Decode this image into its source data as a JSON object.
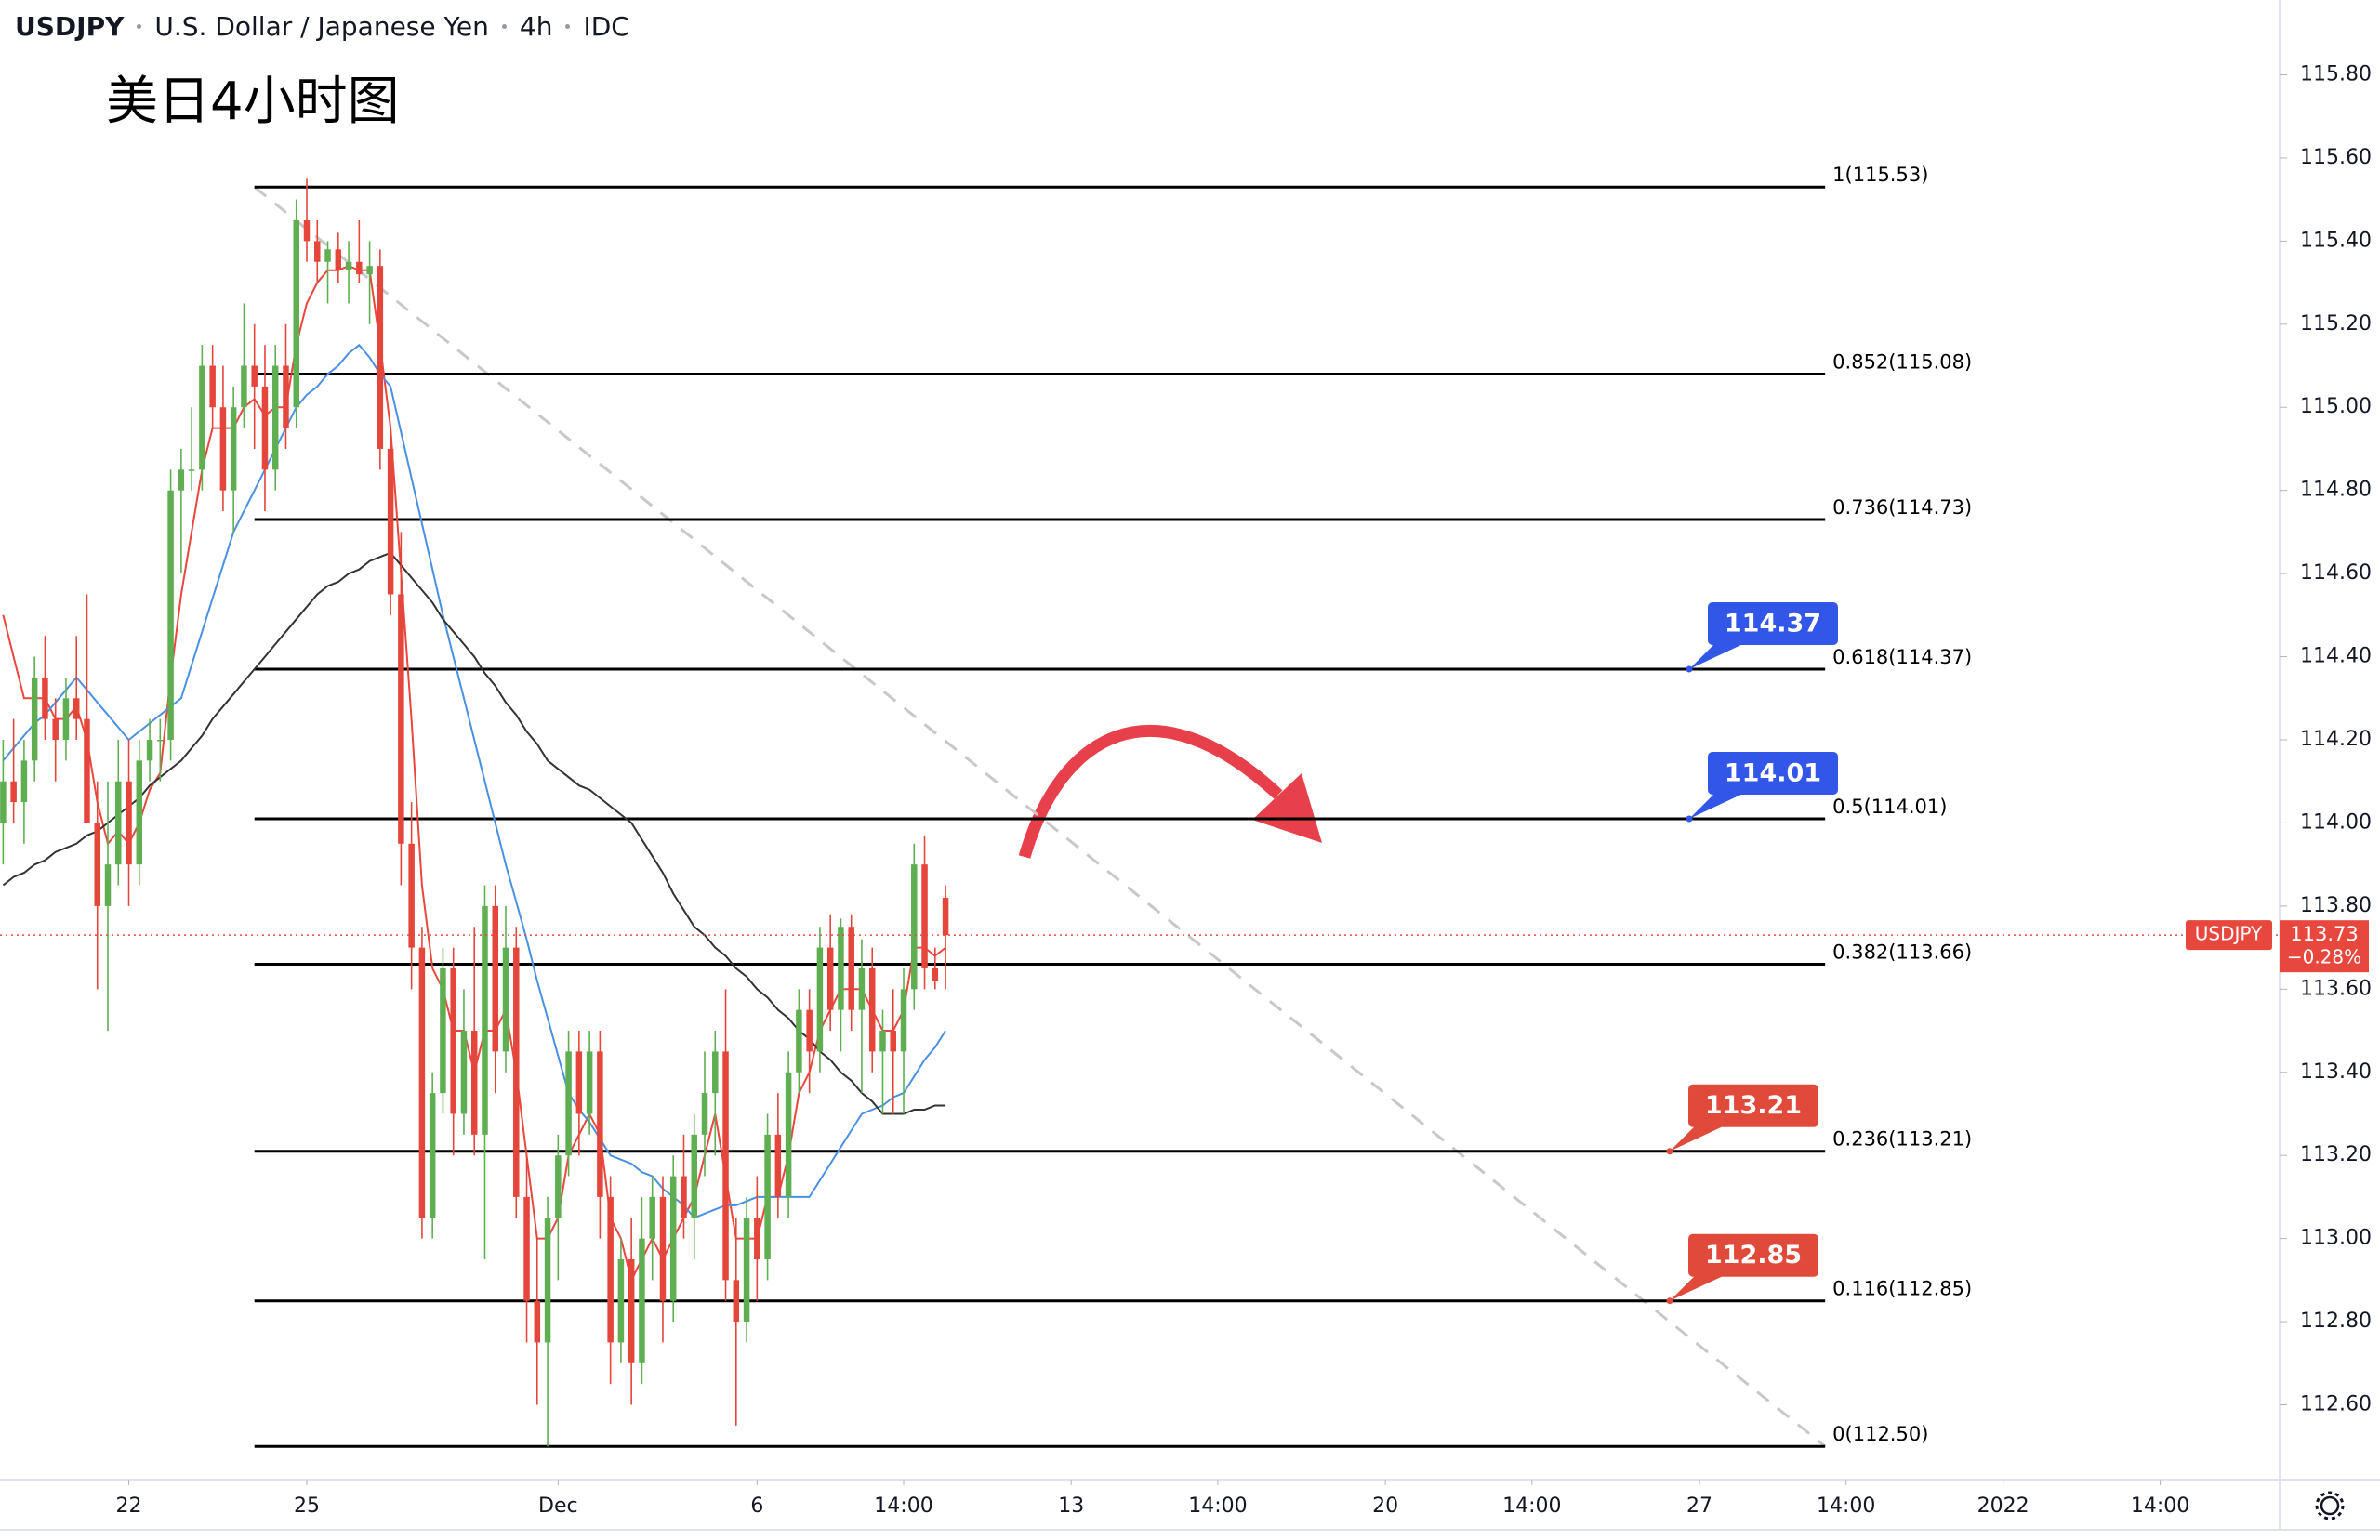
{
  "chart_data": {
    "type": "candlestick",
    "header": {
      "symbol": "USDJPY",
      "name": "U.S. Dollar / Japanese Yen",
      "interval": "4h",
      "source": "IDC"
    },
    "annotation": "美日4小时图",
    "up_color": "#5fae52",
    "down_color": "#e5463c",
    "xlim": [
      -0.3,
      217.4
    ],
    "ylim": [
      112.42,
      115.98
    ],
    "grid": false,
    "yticks": [
      {
        "value": 112.6,
        "label": "112.60"
      },
      {
        "value": 112.8,
        "label": "112.80"
      },
      {
        "value": 113.0,
        "label": "113.00"
      },
      {
        "value": 113.2,
        "label": "113.20"
      },
      {
        "value": 113.4,
        "label": "113.40"
      },
      {
        "value": 113.6,
        "label": "113.60"
      },
      {
        "value": 113.8,
        "label": "113.80"
      },
      {
        "value": 114.0,
        "label": "114.00"
      },
      {
        "value": 114.2,
        "label": "114.20"
      },
      {
        "value": 114.4,
        "label": "114.40"
      },
      {
        "value": 114.6,
        "label": "114.60"
      },
      {
        "value": 114.8,
        "label": "114.80"
      },
      {
        "value": 115.0,
        "label": "115.00"
      },
      {
        "value": 115.2,
        "label": "115.20"
      },
      {
        "value": 115.4,
        "label": "115.40"
      },
      {
        "value": 115.6,
        "label": "115.60"
      },
      {
        "value": 115.8,
        "label": "115.80"
      }
    ],
    "xticks": [
      {
        "value": 12,
        "label": "22"
      },
      {
        "value": 29,
        "label": "25"
      },
      {
        "value": 53,
        "label": "Dec"
      },
      {
        "value": 72,
        "label": "6"
      },
      {
        "value": 86,
        "label": "14:00"
      },
      {
        "value": 102,
        "label": "13"
      },
      {
        "value": 116,
        "label": "14:00"
      },
      {
        "value": 132,
        "label": "20"
      },
      {
        "value": 146,
        "label": "14:00"
      },
      {
        "value": 162,
        "label": "27"
      },
      {
        "value": 176,
        "label": "14:00"
      },
      {
        "value": 191,
        "label": "2022"
      },
      {
        "value": 206,
        "label": "14:00"
      }
    ],
    "candles": [
      [
        114.0,
        114.2,
        113.9,
        114.1
      ],
      [
        114.1,
        114.25,
        114.0,
        114.05
      ],
      [
        114.05,
        114.2,
        113.95,
        114.15
      ],
      [
        114.15,
        114.4,
        114.1,
        114.35
      ],
      [
        114.35,
        114.45,
        114.2,
        114.25
      ],
      [
        114.25,
        114.3,
        114.1,
        114.2
      ],
      [
        114.2,
        114.35,
        114.15,
        114.3
      ],
      [
        114.3,
        114.45,
        114.2,
        114.25
      ],
      [
        114.25,
        114.55,
        114.0,
        114.0
      ],
      [
        114.0,
        114.1,
        113.6,
        113.8
      ],
      [
        113.8,
        114.1,
        113.5,
        113.9
      ],
      [
        113.9,
        114.2,
        113.85,
        114.1
      ],
      [
        114.1,
        114.2,
        113.8,
        113.9
      ],
      [
        113.9,
        114.2,
        113.85,
        114.15
      ],
      [
        114.15,
        114.25,
        114.1,
        114.2
      ],
      [
        114.2,
        114.25,
        114.1,
        114.2
      ],
      [
        114.2,
        114.85,
        114.15,
        114.8
      ],
      [
        114.8,
        114.9,
        114.6,
        114.85
      ],
      [
        114.85,
        115.0,
        114.8,
        114.85
      ],
      [
        114.85,
        115.15,
        114.8,
        115.1
      ],
      [
        115.1,
        115.15,
        114.95,
        115.0
      ],
      [
        115.0,
        115.1,
        114.75,
        114.8
      ],
      [
        114.8,
        115.05,
        114.7,
        115.0
      ],
      [
        115.0,
        115.25,
        114.95,
        115.1
      ],
      [
        115.1,
        115.2,
        114.9,
        115.05
      ],
      [
        115.05,
        115.15,
        114.75,
        114.85
      ],
      [
        114.85,
        115.15,
        114.8,
        115.1
      ],
      [
        115.1,
        115.2,
        114.9,
        114.95
      ],
      [
        115.0,
        115.5,
        114.95,
        115.45
      ],
      [
        115.45,
        115.55,
        115.35,
        115.4
      ],
      [
        115.4,
        115.45,
        115.3,
        115.35
      ],
      [
        115.35,
        115.4,
        115.25,
        115.38
      ],
      [
        115.38,
        115.42,
        115.3,
        115.33
      ],
      [
        115.33,
        115.4,
        115.25,
        115.35
      ],
      [
        115.35,
        115.45,
        115.3,
        115.32
      ],
      [
        115.32,
        115.4,
        115.2,
        115.34
      ],
      [
        115.34,
        115.38,
        114.85,
        114.9
      ],
      [
        114.9,
        114.95,
        114.5,
        114.55
      ],
      [
        114.55,
        114.7,
        113.85,
        113.95
      ],
      [
        113.95,
        114.05,
        113.6,
        113.7
      ],
      [
        113.7,
        113.75,
        113.0,
        113.05
      ],
      [
        113.05,
        113.4,
        113.0,
        113.35
      ],
      [
        113.35,
        113.7,
        113.3,
        113.65
      ],
      [
        113.65,
        113.7,
        113.2,
        113.3
      ],
      [
        113.3,
        113.6,
        113.25,
        113.5
      ],
      [
        113.5,
        113.75,
        113.2,
        113.25
      ],
      [
        113.25,
        113.85,
        112.95,
        113.8
      ],
      [
        113.8,
        113.85,
        113.35,
        113.45
      ],
      [
        113.45,
        113.8,
        113.4,
        113.7
      ],
      [
        113.7,
        113.75,
        113.05,
        113.1
      ],
      [
        113.1,
        113.2,
        112.75,
        112.85
      ],
      [
        112.85,
        113.0,
        112.6,
        112.75
      ],
      [
        112.75,
        113.1,
        112.5,
        113.05
      ],
      [
        113.05,
        113.25,
        112.9,
        113.2
      ],
      [
        113.2,
        113.5,
        113.15,
        113.45
      ],
      [
        113.45,
        113.5,
        113.2,
        113.3
      ],
      [
        113.3,
        113.5,
        113.25,
        113.45
      ],
      [
        113.45,
        113.5,
        113.0,
        113.1
      ],
      [
        113.1,
        113.15,
        112.65,
        112.75
      ],
      [
        112.75,
        113.0,
        112.7,
        112.95
      ],
      [
        112.95,
        113.05,
        112.6,
        112.7
      ],
      [
        112.7,
        113.1,
        112.65,
        113.0
      ],
      [
        113.0,
        113.15,
        112.9,
        113.1
      ],
      [
        113.1,
        113.15,
        112.75,
        112.85
      ],
      [
        112.85,
        113.2,
        112.8,
        113.15
      ],
      [
        113.15,
        113.25,
        113.0,
        113.05
      ],
      [
        113.05,
        113.3,
        112.95,
        113.25
      ],
      [
        113.25,
        113.45,
        113.15,
        113.35
      ],
      [
        113.35,
        113.5,
        113.2,
        113.45
      ],
      [
        113.45,
        113.6,
        112.85,
        112.9
      ],
      [
        112.9,
        113.05,
        112.55,
        112.8
      ],
      [
        112.8,
        113.1,
        112.75,
        113.05
      ],
      [
        113.05,
        113.15,
        112.85,
        112.95
      ],
      [
        112.95,
        113.3,
        112.9,
        113.25
      ],
      [
        113.25,
        113.35,
        113.05,
        113.1
      ],
      [
        113.1,
        113.45,
        113.05,
        113.4
      ],
      [
        113.4,
        113.6,
        113.35,
        113.55
      ],
      [
        113.55,
        113.6,
        113.35,
        113.45
      ],
      [
        113.45,
        113.75,
        113.4,
        113.7
      ],
      [
        113.7,
        113.78,
        113.5,
        113.55
      ],
      [
        113.55,
        113.77,
        113.45,
        113.75
      ],
      [
        113.75,
        113.78,
        113.5,
        113.55
      ],
      [
        113.55,
        113.72,
        113.35,
        113.65
      ],
      [
        113.65,
        113.7,
        113.4,
        113.45
      ],
      [
        113.45,
        113.55,
        113.3,
        113.5
      ],
      [
        113.5,
        113.6,
        113.3,
        113.45
      ],
      [
        113.45,
        113.65,
        113.3,
        113.6
      ],
      [
        113.6,
        113.95,
        113.55,
        113.9
      ],
      [
        113.9,
        113.97,
        113.6,
        113.65
      ],
      [
        113.65,
        113.7,
        113.6,
        113.62
      ],
      [
        113.82,
        113.85,
        113.6,
        113.73
      ]
    ],
    "series": [
      {
        "color": "#e8473d",
        "values": [
          114.5,
          114.4,
          114.3,
          114.3,
          114.3,
          114.25,
          114.25,
          114.28,
          114.2,
          114.05,
          113.95,
          113.98,
          113.95,
          114.0,
          114.08,
          114.12,
          114.35,
          114.55,
          114.7,
          114.85,
          114.95,
          114.95,
          114.95,
          115.0,
          115.02,
          114.98,
          115.0,
          115.0,
          115.15,
          115.25,
          115.3,
          115.33,
          115.33,
          115.34,
          115.33,
          115.33,
          115.15,
          114.95,
          114.6,
          114.25,
          113.85,
          113.65,
          113.6,
          113.5,
          113.5,
          113.4,
          113.5,
          113.5,
          113.55,
          113.4,
          113.2,
          113.0,
          113.0,
          113.05,
          113.2,
          113.25,
          113.3,
          113.25,
          113.05,
          113.0,
          112.9,
          112.95,
          113.0,
          112.95,
          113.0,
          113.05,
          113.1,
          113.2,
          113.3,
          113.15,
          113.0,
          113.0,
          113.0,
          113.1,
          113.1,
          113.2,
          113.35,
          113.4,
          113.5,
          113.55,
          113.6,
          113.6,
          113.6,
          113.55,
          113.5,
          113.5,
          113.55,
          113.7,
          113.7,
          113.68,
          113.7
        ]
      },
      {
        "color": "#4a90e2",
        "values": [
          114.15,
          114.18,
          114.21,
          114.24,
          114.26,
          114.29,
          114.32,
          114.35,
          114.32,
          114.29,
          114.26,
          114.23,
          114.2,
          114.22,
          114.24,
          114.26,
          114.28,
          114.3,
          114.38,
          114.46,
          114.54,
          114.62,
          114.7,
          114.75,
          114.8,
          114.85,
          114.9,
          114.95,
          115.0,
          115.03,
          115.05,
          115.08,
          115.1,
          115.13,
          115.15,
          115.12,
          115.08,
          115.05,
          114.94,
          114.83,
          114.72,
          114.61,
          114.5,
          114.4,
          114.3,
          114.2,
          114.1,
          114.0,
          113.9,
          113.81,
          113.72,
          113.62,
          113.53,
          113.44,
          113.35,
          113.31,
          113.28,
          113.24,
          113.2,
          113.19,
          113.18,
          113.16,
          113.15,
          113.12,
          113.1,
          113.08,
          113.05,
          113.06,
          113.07,
          113.08,
          113.08,
          113.09,
          113.1,
          113.1,
          113.1,
          113.1,
          113.1,
          113.1,
          113.14,
          113.18,
          113.22,
          113.26,
          113.3,
          113.31,
          113.32,
          113.34,
          113.35,
          113.39,
          113.43,
          113.46,
          113.5
        ]
      },
      {
        "color": "#333333",
        "values": [
          113.85,
          113.87,
          113.88,
          113.9,
          113.91,
          113.93,
          113.94,
          113.95,
          113.97,
          113.98,
          114.0,
          114.02,
          114.04,
          114.06,
          114.09,
          114.11,
          114.13,
          114.15,
          114.18,
          114.21,
          114.25,
          114.28,
          114.31,
          114.34,
          114.37,
          114.4,
          114.43,
          114.46,
          114.49,
          114.52,
          114.55,
          114.57,
          114.58,
          114.6,
          114.61,
          114.63,
          114.64,
          114.65,
          114.62,
          114.59,
          114.56,
          114.53,
          114.49,
          114.46,
          114.43,
          114.4,
          114.36,
          114.33,
          114.29,
          114.26,
          114.22,
          114.19,
          114.15,
          114.13,
          114.11,
          114.09,
          114.08,
          114.06,
          114.04,
          114.02,
          114.0,
          113.96,
          113.92,
          113.88,
          113.83,
          113.79,
          113.75,
          113.73,
          113.7,
          113.68,
          113.65,
          113.63,
          113.6,
          113.58,
          113.55,
          113.53,
          113.5,
          113.48,
          113.45,
          113.43,
          113.4,
          113.38,
          113.35,
          113.33,
          113.3,
          113.3,
          113.3,
          113.31,
          113.31,
          113.32,
          113.32
        ]
      }
    ],
    "fib_x": [
      24,
      174
    ],
    "fib_levels": [
      {
        "price": 115.53,
        "label": "1(115.53)"
      },
      {
        "price": 115.08,
        "label": "0.852(115.08)"
      },
      {
        "price": 114.73,
        "label": "0.736(114.73)"
      },
      {
        "price": 114.37,
        "label": "0.618(114.37)"
      },
      {
        "price": 114.01,
        "label": "0.5(114.01)"
      },
      {
        "price": 113.66,
        "label": "0.382(113.66)"
      },
      {
        "price": 113.21,
        "label": "0.236(113.21)"
      },
      {
        "price": 112.85,
        "label": "0.116(112.85)"
      },
      {
        "price": 112.5,
        "label": "0(112.50)"
      }
    ],
    "trendline": {
      "x": [
        24,
        174
      ],
      "y": [
        115.53,
        112.5
      ]
    },
    "price_tags": [
      {
        "value": 114.37,
        "color": "#3156e8"
      },
      {
        "value": 114.01,
        "color": "#3156e8"
      },
      {
        "value": 113.21,
        "color": "#e04a3a"
      },
      {
        "value": 112.85,
        "color": "#e04a3a"
      }
    ],
    "last_price": {
      "symbol": "USDJPY",
      "value": 113.73,
      "change": -0.28,
      "change_label": "−0.28%",
      "color": "#e8473d"
    }
  }
}
